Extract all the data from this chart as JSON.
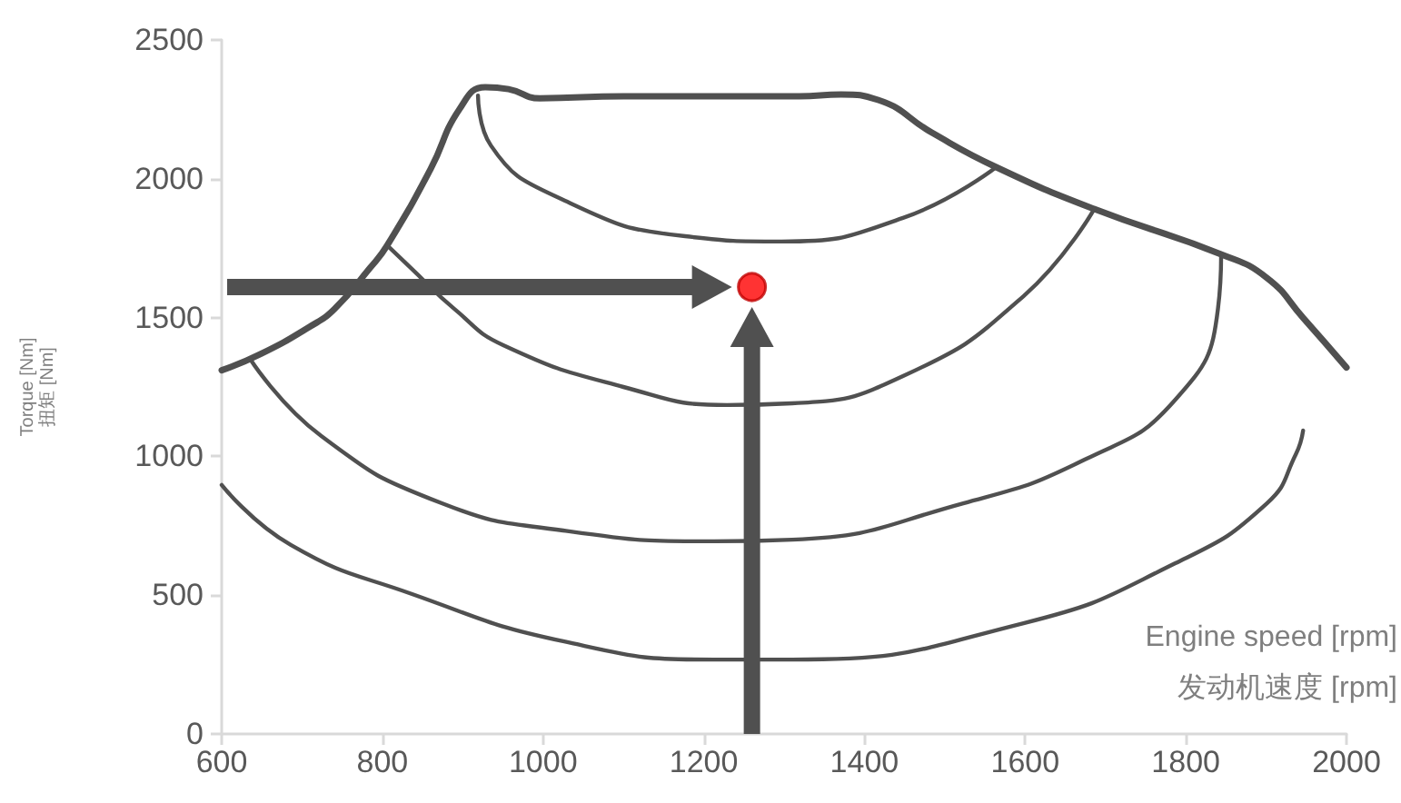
{
  "chart_data": {
    "type": "line",
    "xlabel": "Engine speed [rpm]\n发动机速度 [rpm]",
    "ylabel": "Torque [Nm]\n扭矩 [Nm]",
    "xlim": [
      600,
      2000
    ],
    "xticks": [
      600,
      800,
      1000,
      1200,
      1400,
      1600,
      1800,
      2000
    ],
    "ylim": [
      0,
      2500
    ],
    "yticks": [
      0,
      500,
      1000,
      1500,
      2000,
      2500
    ],
    "marker": "none",
    "line_style": "solid",
    "grid": false,
    "series": [
      {
        "color": "#505050",
        "x": [
          600,
          648,
          709,
          740,
          785,
          806,
          860,
          896,
          928,
          957,
          996,
          1100,
          1319,
          1371,
          1417,
          1484,
          1564,
          1686,
          1844,
          1901,
          1946,
          2000
        ],
        "values": [
          1310,
          1368,
          1466,
          1530,
          1680,
          1760,
          2035,
          2251,
          2330,
          2323,
          2290,
          2297,
          2297,
          2304,
          2284,
          2166,
          2042,
          1891,
          1728,
          1643,
          1499,
          1320
        ]
      },
      {
        "color": "#505050",
        "x": [
          919,
          935,
          1025,
          1177,
          1297,
          1448,
          1564
        ],
        "values": [
          2300,
          2120,
          1924,
          1793,
          1774,
          1859,
          2042
        ]
      },
      {
        "color": "#505050",
        "x": [
          806,
          835,
          890,
          951,
          1100,
          1229,
          1310,
          1448,
          1598,
          1686
        ],
        "values": [
          1760,
          1680,
          1530,
          1400,
          1250,
          1185,
          1191,
          1289,
          1577,
          1891
        ]
      },
      {
        "color": "#505050",
        "x": [
          636,
          724,
          874,
          1025,
          1213,
          1310,
          1523,
          1674,
          1787,
          1840,
          1844
        ],
        "values": [
          1348,
          1073,
          831,
          733,
          694,
          700,
          831,
          988,
          1204,
          1531,
          1728
        ]
      },
      {
        "color": "#505050",
        "x": [
          600,
          686,
          837,
          1025,
          1213,
          1310,
          1598,
          1787,
          1901,
          1937,
          1946
        ],
        "values": [
          897,
          681,
          504,
          334,
          268,
          268,
          399,
          615,
          831,
          1008,
          1093
        ]
      },
      {
        "type": "scatter",
        "marker": "circle",
        "color": "#ff0000",
        "x": [
          1260
        ],
        "values": [
          1610
        ]
      }
    ]
  }
}
